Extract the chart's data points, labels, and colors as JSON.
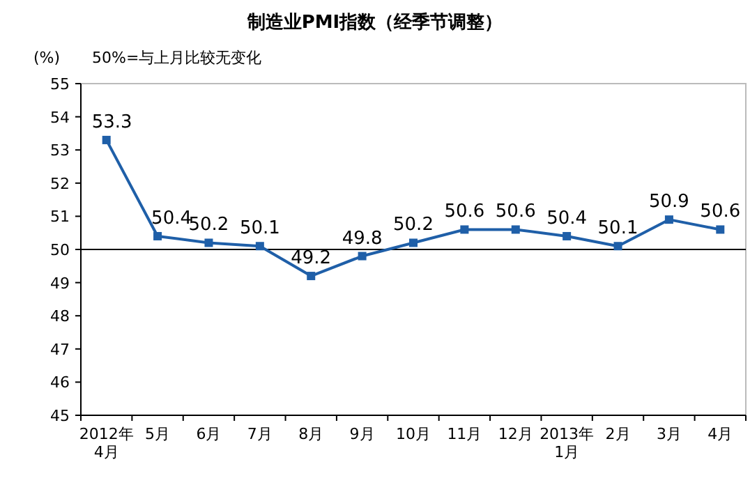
{
  "chart_data": {
    "type": "line",
    "title": "制造业PMI指数（经季节调整）",
    "ylabel": "(%)",
    "annotations": [
      "50%=与上月比较无变化"
    ],
    "categories": [
      "2012年\n4月",
      "5月",
      "6月",
      "7月",
      "8月",
      "9月",
      "10月",
      "11月",
      "12月",
      "2013年\n1月",
      "2月",
      "3月",
      "4月"
    ],
    "series": [
      {
        "color": "#1f5fa8",
        "values": [
          53.3,
          50.4,
          50.2,
          50.1,
          49.2,
          49.8,
          50.2,
          50.6,
          50.6,
          50.4,
          50.1,
          50.9,
          50.6
        ]
      }
    ],
    "ylim": [
      45,
      55
    ],
    "yticks": [
      45,
      46,
      47,
      48,
      49,
      50,
      51,
      52,
      53,
      54,
      55
    ],
    "ref_lines": [
      {
        "axis": "y",
        "value": 50,
        "color": "#000000"
      }
    ],
    "marker": "square",
    "data_labels": true,
    "grid": false
  }
}
